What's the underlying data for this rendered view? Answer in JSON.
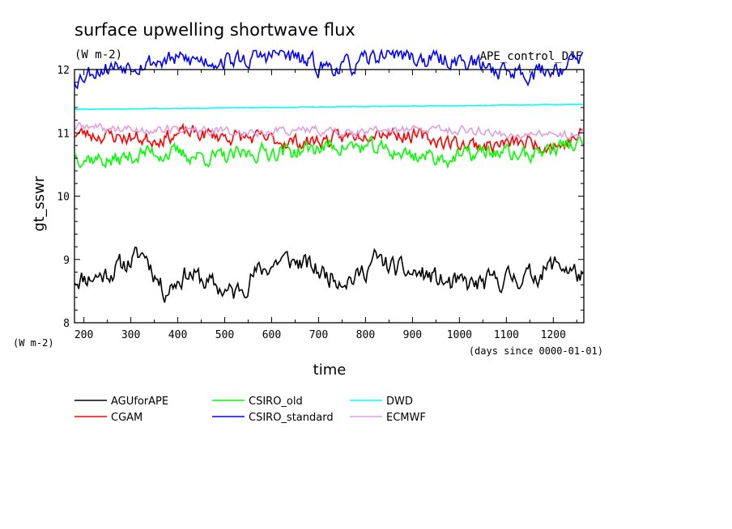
{
  "chart_data": {
    "type": "line",
    "title": "surface upwelling shortwave flux",
    "units": "(W m-2)",
    "annotation": "APE_control_DJF",
    "xlabel": "time",
    "xunit": "(days since 0000-01-01)",
    "ylabel": "gt_sswr",
    "yunit": "(W m-2)",
    "xlim": [
      180,
      1265
    ],
    "ylim": [
      8,
      12
    ],
    "xticks": [
      200,
      300,
      400,
      500,
      600,
      700,
      800,
      900,
      1000,
      1100,
      1200
    ],
    "yticks": [
      8,
      9,
      10,
      11,
      12
    ],
    "grid": false,
    "legend_position": "bottom",
    "series": [
      {
        "name": "AGUforAPE",
        "color": "#000000",
        "mean": 8.72,
        "amplitude": 0.2,
        "noise": 0.14,
        "seed": 11,
        "anchors": [
          [
            180,
            8.7
          ],
          [
            240,
            8.75
          ],
          [
            280,
            8.9
          ],
          [
            330,
            9.1
          ],
          [
            370,
            8.5
          ],
          [
            420,
            8.8
          ],
          [
            470,
            8.6
          ],
          [
            520,
            8.45
          ],
          [
            560,
            8.75
          ],
          [
            620,
            9.0
          ],
          [
            660,
            8.95
          ],
          [
            720,
            8.75
          ],
          [
            780,
            8.7
          ],
          [
            820,
            9.0
          ],
          [
            880,
            8.8
          ],
          [
            930,
            8.75
          ],
          [
            980,
            8.6
          ],
          [
            1040,
            8.6
          ],
          [
            1100,
            8.7
          ],
          [
            1160,
            8.75
          ],
          [
            1210,
            8.95
          ],
          [
            1265,
            8.7
          ]
        ]
      },
      {
        "name": "CGAM",
        "color": "#ff0000",
        "mean": 10.95,
        "amplitude": 0.08,
        "noise": 0.1,
        "seed": 23,
        "anchors": [
          [
            180,
            11.0
          ],
          [
            260,
            10.95
          ],
          [
            340,
            10.9
          ],
          [
            420,
            11.0
          ],
          [
            500,
            10.95
          ],
          [
            580,
            10.9
          ],
          [
            660,
            10.85
          ],
          [
            740,
            10.9
          ],
          [
            820,
            11.05
          ],
          [
            900,
            10.95
          ],
          [
            980,
            10.85
          ],
          [
            1060,
            10.8
          ],
          [
            1140,
            10.85
          ],
          [
            1220,
            10.8
          ],
          [
            1265,
            11.0
          ]
        ]
      },
      {
        "name": "CSIRO_old",
        "color": "#00ff00",
        "mean": 10.7,
        "amplitude": 0.08,
        "noise": 0.11,
        "seed": 37,
        "anchors": [
          [
            180,
            10.65
          ],
          [
            260,
            10.55
          ],
          [
            340,
            10.7
          ],
          [
            420,
            10.65
          ],
          [
            500,
            10.6
          ],
          [
            580,
            10.7
          ],
          [
            660,
            10.72
          ],
          [
            740,
            10.8
          ],
          [
            820,
            10.75
          ],
          [
            900,
            10.65
          ],
          [
            980,
            10.6
          ],
          [
            1060,
            10.7
          ],
          [
            1140,
            10.65
          ],
          [
            1220,
            10.8
          ],
          [
            1265,
            10.8
          ]
        ]
      },
      {
        "name": "CSIRO_standard",
        "color": "#0000ff",
        "mean": 12.1,
        "amplitude": 0.1,
        "noise": 0.12,
        "seed": 53,
        "anchors": [
          [
            180,
            11.85
          ],
          [
            220,
            12.0
          ],
          [
            300,
            12.1
          ],
          [
            380,
            12.15
          ],
          [
            460,
            12.15
          ],
          [
            540,
            12.15
          ],
          [
            620,
            12.25
          ],
          [
            700,
            12.05
          ],
          [
            780,
            12.05
          ],
          [
            850,
            12.3
          ],
          [
            920,
            12.15
          ],
          [
            1000,
            12.15
          ],
          [
            1080,
            12.0
          ],
          [
            1160,
            11.95
          ],
          [
            1220,
            12.05
          ],
          [
            1265,
            12.2
          ]
        ]
      },
      {
        "name": "DWD",
        "color": "#00ffff",
        "mean": 11.4,
        "amplitude": 0.0,
        "noise": 0.004,
        "seed": 71,
        "anchors": [
          [
            180,
            11.37
          ],
          [
            1265,
            11.45
          ]
        ]
      },
      {
        "name": "ECMWF",
        "color": "#dda0dd",
        "mean": 11.05,
        "amplitude": 0.05,
        "noise": 0.06,
        "seed": 89,
        "anchors": [
          [
            180,
            11.1
          ],
          [
            300,
            11.05
          ],
          [
            420,
            11.05
          ],
          [
            540,
            11.0
          ],
          [
            660,
            11.05
          ],
          [
            780,
            11.0
          ],
          [
            900,
            11.05
          ],
          [
            1020,
            11.05
          ],
          [
            1140,
            10.95
          ],
          [
            1265,
            11.0
          ]
        ]
      }
    ]
  }
}
